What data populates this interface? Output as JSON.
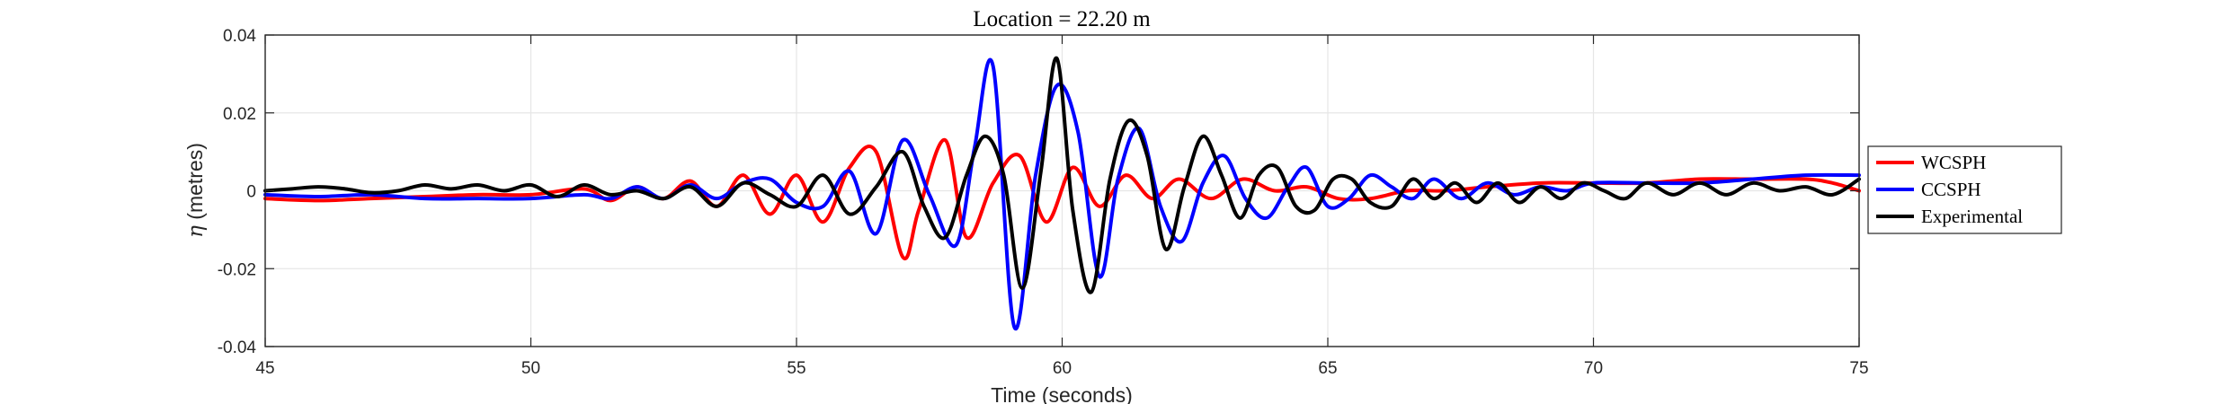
{
  "chart_data": {
    "type": "line",
    "title": "Location = 22.20 m",
    "xlabel": "Time (seconds)",
    "ylabel_symbol": "η",
    "ylabel_text": "(metres)",
    "xlim": [
      45,
      75
    ],
    "ylim": [
      -0.04,
      0.04
    ],
    "xticks": [
      45,
      50,
      55,
      60,
      65,
      70,
      75
    ],
    "xtick_labels": [
      "45",
      "50",
      "55",
      "60",
      "65",
      "70",
      "75"
    ],
    "yticks": [
      -0.04,
      -0.02,
      0,
      0.02,
      0.04
    ],
    "ytick_labels": [
      "-0.04",
      "-0.02",
      "0",
      "0.02",
      "0.04"
    ],
    "grid": true,
    "legend_position": "outside-right",
    "series": [
      {
        "name": "WCSPH",
        "color": "#ff0000",
        "x": [
          45,
          46,
          47,
          48,
          49,
          50,
          51,
          51.5,
          52,
          52.5,
          53,
          53.5,
          54,
          54.5,
          55,
          55.5,
          56,
          56.5,
          57,
          57.3,
          57.8,
          58.2,
          58.7,
          59.2,
          59.7,
          60.2,
          60.7,
          61.2,
          61.7,
          62.2,
          62.8,
          63.4,
          64,
          64.6,
          65.2,
          65.8,
          66.5,
          67.2,
          68,
          69,
          70,
          71,
          72,
          73,
          74,
          74.5,
          75
        ],
        "y": [
          -0.002,
          -0.0025,
          -0.002,
          -0.0015,
          -0.001,
          -0.001,
          0.0005,
          -0.0025,
          0.001,
          -0.002,
          0.0025,
          -0.004,
          0.004,
          -0.006,
          0.004,
          -0.008,
          0.006,
          0.01,
          -0.017,
          -0.005,
          0.013,
          -0.012,
          0.002,
          0.009,
          -0.008,
          0.006,
          -0.004,
          0.004,
          -0.002,
          0.003,
          -0.002,
          0.003,
          0.0,
          0.001,
          -0.002,
          -0.002,
          0.0,
          0.0,
          0.001,
          0.002,
          0.002,
          0.002,
          0.003,
          0.003,
          0.003,
          0.002,
          0.0
        ]
      },
      {
        "name": "CCSPH",
        "color": "#0000ff",
        "x": [
          45,
          46,
          47,
          48,
          49,
          50,
          51,
          51.5,
          52,
          52.5,
          53,
          53.5,
          54,
          54.5,
          55,
          55.5,
          56,
          56.5,
          57,
          57.5,
          58,
          58.35,
          58.7,
          59.1,
          59.5,
          59.9,
          60.3,
          60.7,
          61.05,
          61.45,
          61.85,
          62.25,
          62.65,
          63.05,
          63.45,
          63.85,
          64.25,
          64.6,
          65,
          65.4,
          65.8,
          66.2,
          66.6,
          67,
          67.5,
          68,
          68.5,
          69,
          69.5,
          70,
          71,
          72,
          73,
          74,
          75
        ],
        "y": [
          -0.001,
          -0.0015,
          -0.001,
          -0.002,
          -0.002,
          -0.002,
          -0.001,
          -0.002,
          0.001,
          -0.002,
          0.0015,
          -0.002,
          0.002,
          0.003,
          -0.003,
          -0.004,
          0.005,
          -0.011,
          0.013,
          -0.001,
          -0.014,
          0.011,
          0.032,
          -0.035,
          0.004,
          0.027,
          0.015,
          -0.022,
          0.003,
          0.016,
          -0.004,
          -0.013,
          0.002,
          0.009,
          -0.002,
          -0.007,
          0.001,
          0.006,
          -0.004,
          -0.002,
          0.004,
          0.001,
          -0.002,
          0.003,
          -0.002,
          0.002,
          -0.001,
          0.001,
          0.0,
          0.002,
          0.002,
          0.002,
          0.003,
          0.004,
          0.004
        ]
      },
      {
        "name": "Experimental",
        "color": "#000000",
        "x": [
          45,
          45.5,
          46,
          46.5,
          47,
          47.5,
          48,
          48.5,
          49,
          49.5,
          50,
          50.5,
          51,
          51.5,
          52,
          52.5,
          53,
          53.5,
          54,
          54.5,
          55,
          55.5,
          56,
          56.5,
          57,
          57.4,
          57.8,
          58.2,
          58.55,
          58.9,
          59.25,
          59.6,
          59.9,
          60.2,
          60.55,
          60.9,
          61.25,
          61.6,
          61.95,
          62.3,
          62.65,
          63,
          63.35,
          63.7,
          64.05,
          64.4,
          64.75,
          65.1,
          65.45,
          65.8,
          66.2,
          66.6,
          67,
          67.4,
          67.8,
          68.2,
          68.6,
          69,
          69.4,
          69.8,
          70.2,
          70.6,
          71,
          71.5,
          72,
          72.5,
          73,
          73.5,
          74,
          74.5,
          75
        ],
        "y": [
          0.0,
          0.0005,
          0.001,
          0.0005,
          -0.0005,
          0.0,
          0.0015,
          0.0005,
          0.0015,
          0.0,
          0.0015,
          -0.0015,
          0.0015,
          -0.001,
          0.0,
          -0.002,
          0.001,
          -0.004,
          0.002,
          -0.001,
          -0.004,
          0.004,
          -0.006,
          0.001,
          0.01,
          -0.004,
          -0.012,
          0.004,
          0.014,
          0.004,
          -0.025,
          0.005,
          0.034,
          -0.005,
          -0.026,
          0.003,
          0.018,
          0.009,
          -0.015,
          0.001,
          0.014,
          0.004,
          -0.007,
          0.004,
          0.006,
          -0.004,
          -0.005,
          0.003,
          0.003,
          -0.003,
          -0.004,
          0.003,
          -0.002,
          0.002,
          -0.003,
          0.002,
          -0.003,
          0.001,
          -0.002,
          0.002,
          0.0,
          -0.002,
          0.002,
          -0.001,
          0.002,
          -0.001,
          0.002,
          0.0,
          0.001,
          -0.001,
          0.003
        ]
      }
    ]
  }
}
